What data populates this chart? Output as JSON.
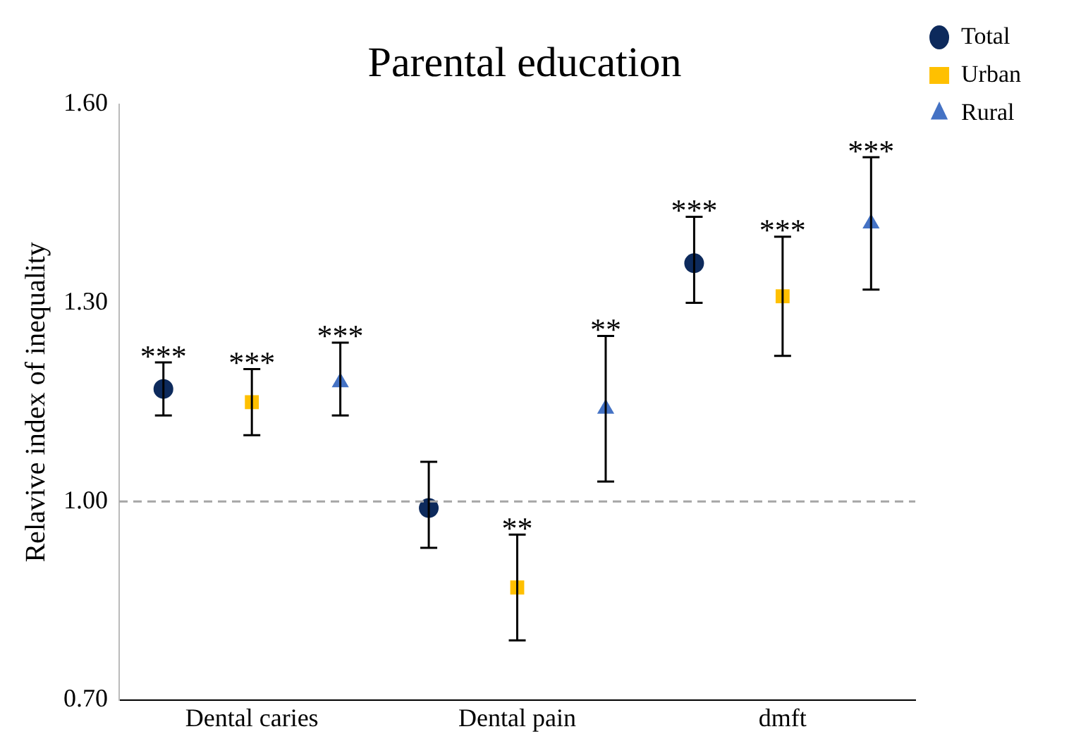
{
  "chart_data": {
    "type": "scatter",
    "title": "Parental education",
    "ylabel": "Relavive index of inequality",
    "categories": [
      "Dental caries",
      "Dental pain",
      "dmft"
    ],
    "series": [
      {
        "name": "Total",
        "color": "#0d2a5c",
        "marker": "circle",
        "values": [
          1.17,
          0.99,
          1.36
        ],
        "errors": [
          [
            1.13,
            1.21
          ],
          [
            0.93,
            1.06
          ],
          [
            1.3,
            1.43
          ]
        ],
        "value_labels": [
          "***",
          null,
          "***"
        ]
      },
      {
        "name": "Urban",
        "color": "#ffc000",
        "marker": "square",
        "values": [
          1.15,
          0.87,
          1.31
        ],
        "errors": [
          [
            1.1,
            1.2
          ],
          [
            0.79,
            0.95
          ],
          [
            1.22,
            1.4
          ]
        ],
        "value_labels": [
          "***",
          "**",
          "***"
        ]
      },
      {
        "name": "Rural",
        "color": "#4472c4",
        "marker": "triangle",
        "values": [
          1.18,
          1.14,
          1.42
        ],
        "errors": [
          [
            1.13,
            1.24
          ],
          [
            1.03,
            1.25
          ],
          [
            1.32,
            1.52
          ]
        ],
        "value_labels": [
          "***",
          "**",
          "***"
        ]
      }
    ],
    "ylim": [
      0.7,
      1.6
    ],
    "yticks": [
      {
        "value": 0.7,
        "label": "0.70"
      },
      {
        "value": 1.0,
        "label": "1.00"
      },
      {
        "value": 1.3,
        "label": "1.30"
      },
      {
        "value": 1.6,
        "label": "1.60"
      }
    ],
    "ref_lines": [
      {
        "axis": "y",
        "value": 1.0,
        "color": "#a6a6a6",
        "line_style": "dashed"
      }
    ],
    "grid": false,
    "legend": "top right"
  }
}
